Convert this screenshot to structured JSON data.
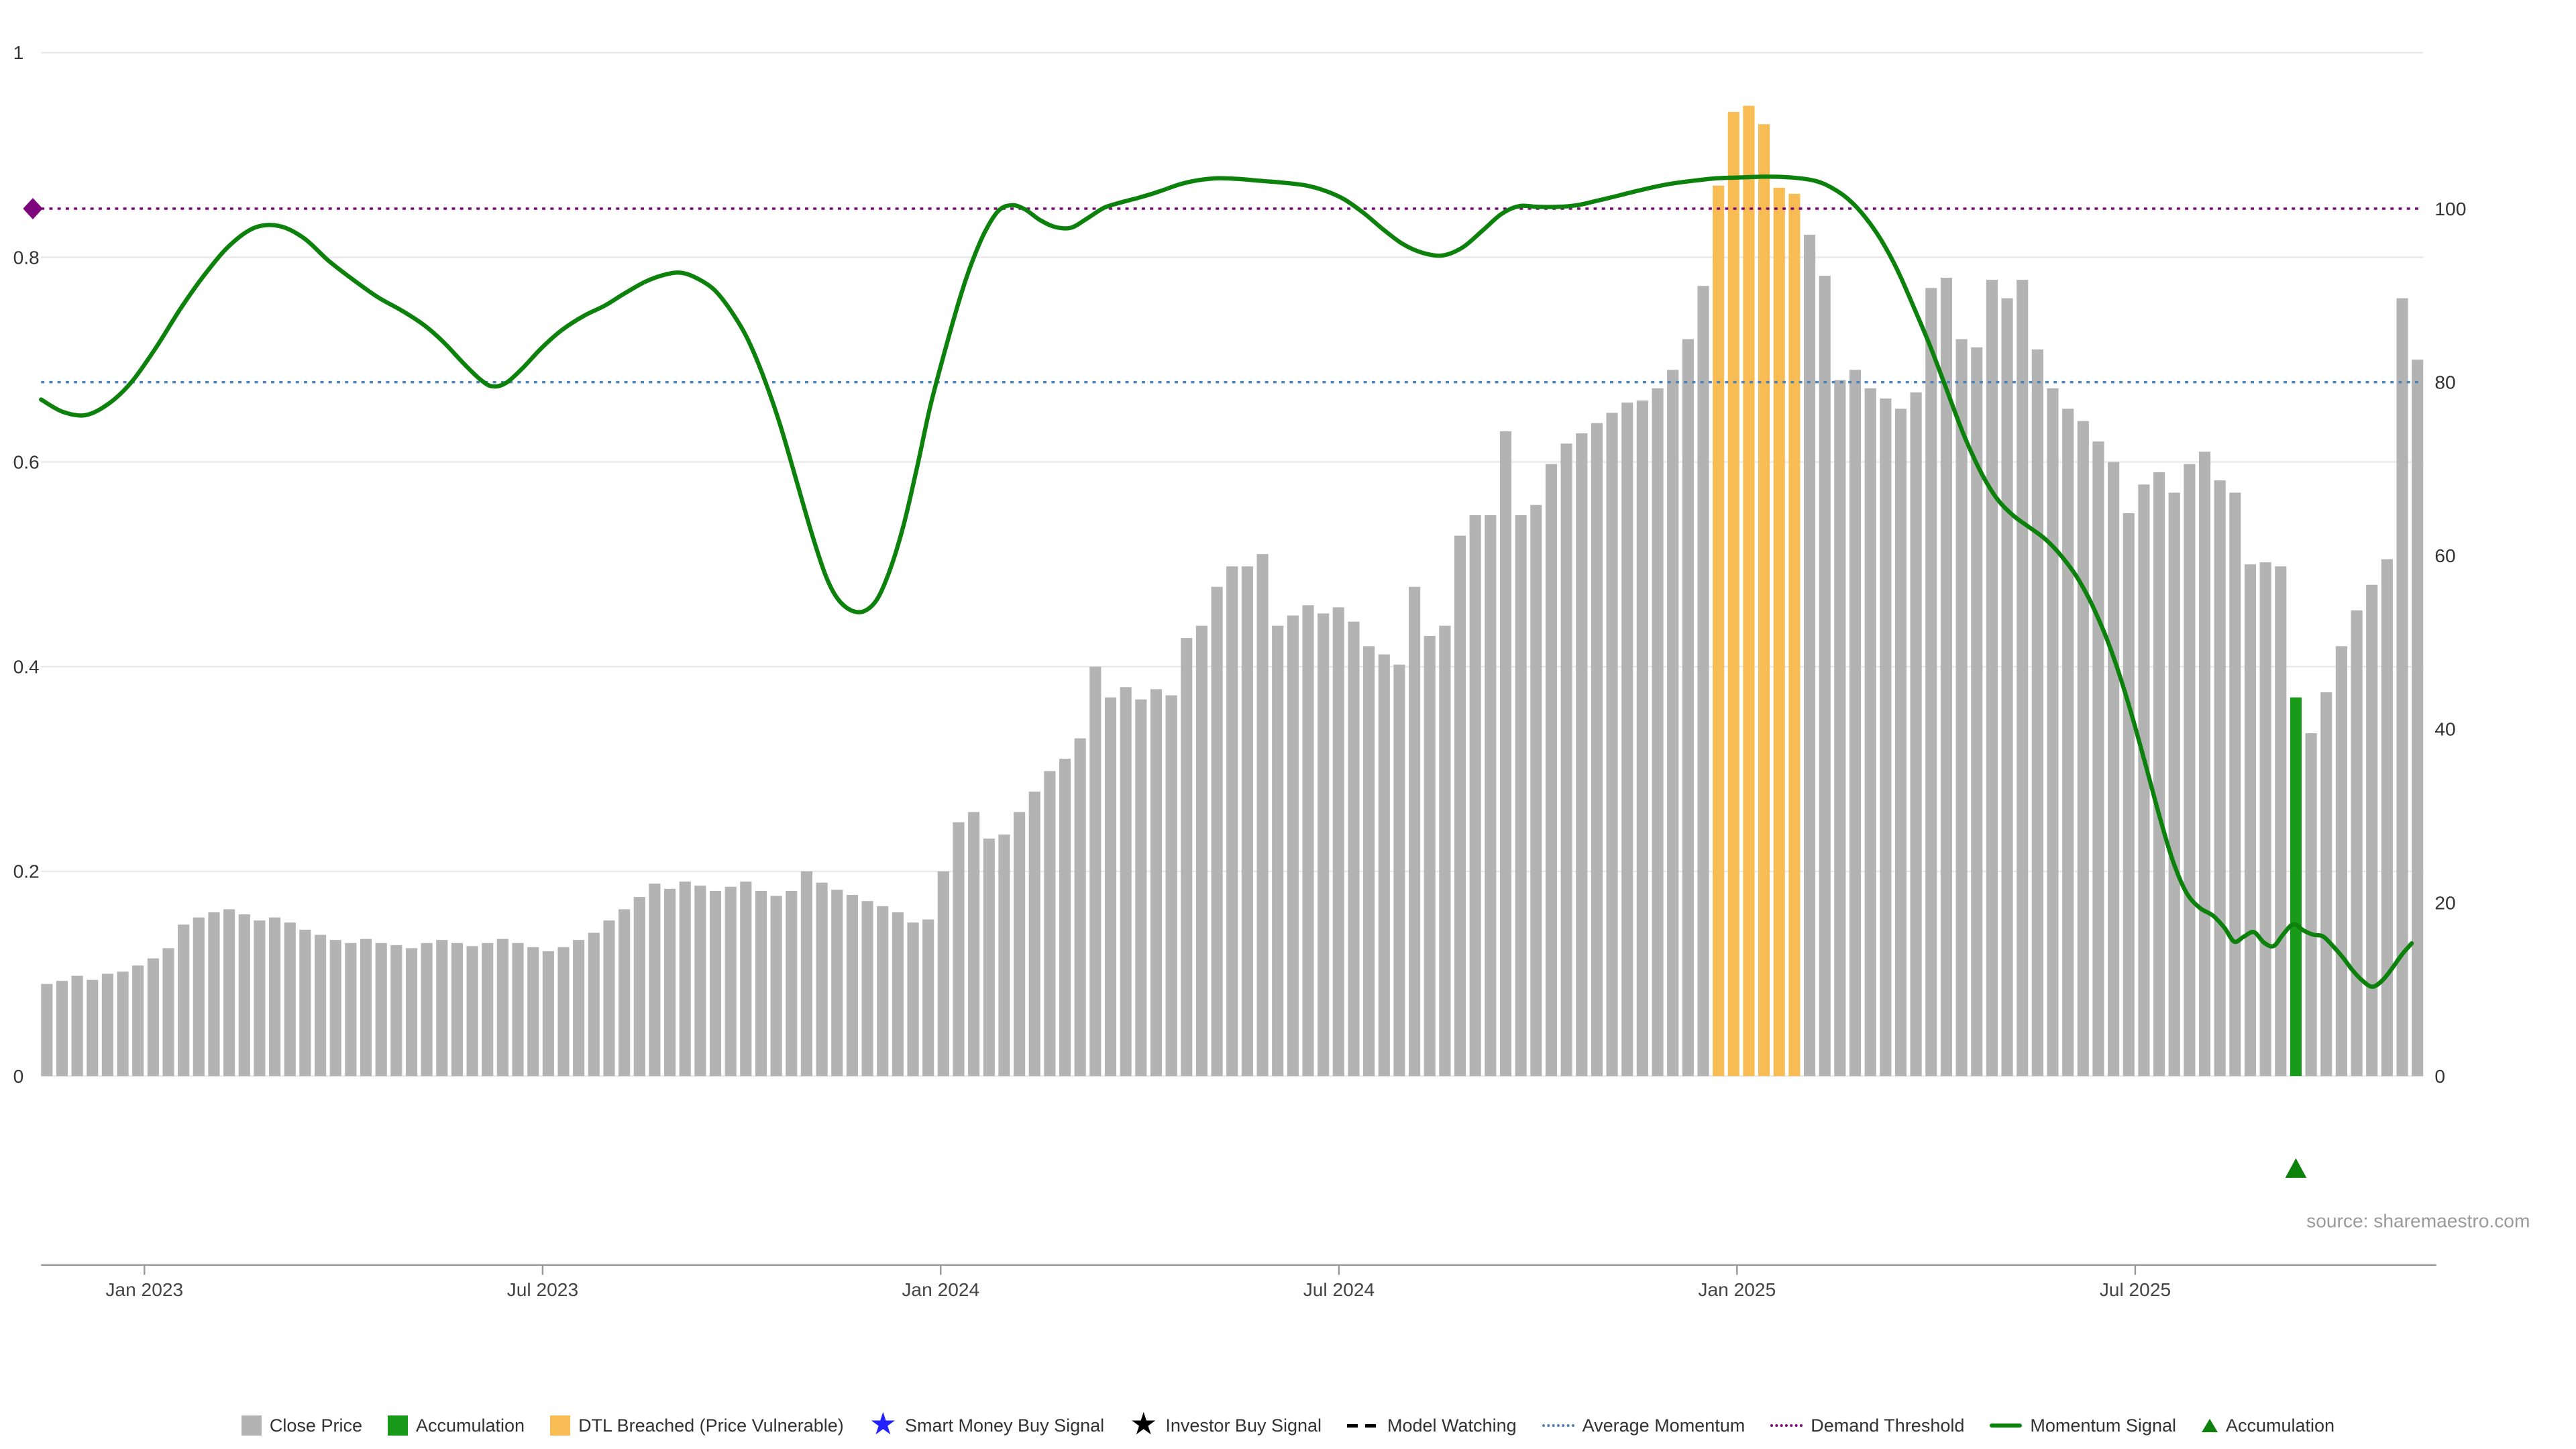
{
  "source_text": "source: sharemaestro.com",
  "chart_data": {
    "type": "bar",
    "title": "",
    "x_axis": {
      "tick_labels": [
        "Jan 2023",
        "Jul 2023",
        "Jan 2024",
        "Jul 2024",
        "Jan 2025",
        "Jul 2025"
      ],
      "tick_indices": [
        6.8,
        33.0,
        59.2,
        85.4,
        111.6,
        137.8
      ]
    },
    "left_axis": {
      "ticks": [
        "0",
        "0.2",
        "0.4",
        "0.6",
        "0.8",
        "1"
      ],
      "tick_values": [
        0,
        0.2,
        0.4,
        0.6,
        0.8,
        1
      ],
      "range": [
        0,
        1
      ]
    },
    "right_axis": {
      "ticks": [
        "0",
        "20",
        "40",
        "60",
        "80",
        "100"
      ],
      "tick_values": [
        0,
        20,
        40,
        60,
        80,
        100
      ],
      "range": [
        0,
        120
      ]
    },
    "close_price": {
      "name": "Close Price",
      "frequency": "weekly",
      "values": [
        0.09,
        0.093,
        0.098,
        0.094,
        0.1,
        0.102,
        0.108,
        0.115,
        0.125,
        0.148,
        0.155,
        0.16,
        0.163,
        0.158,
        0.152,
        0.155,
        0.15,
        0.143,
        0.138,
        0.133,
        0.13,
        0.134,
        0.13,
        0.128,
        0.125,
        0.13,
        0.133,
        0.13,
        0.127,
        0.13,
        0.134,
        0.13,
        0.126,
        0.122,
        0.126,
        0.133,
        0.14,
        0.152,
        0.163,
        0.175,
        0.188,
        0.183,
        0.19,
        0.186,
        0.181,
        0.185,
        0.19,
        0.181,
        0.176,
        0.181,
        0.2,
        0.189,
        0.182,
        0.177,
        0.171,
        0.166,
        0.16,
        0.15,
        0.153,
        0.2,
        0.248,
        0.258,
        0.232,
        0.236,
        0.258,
        0.278,
        0.298,
        0.31,
        0.33,
        0.4,
        0.37,
        0.38,
        0.368,
        0.378,
        0.372,
        0.428,
        0.44,
        0.478,
        0.498,
        0.498,
        0.51,
        0.44,
        0.45,
        0.46,
        0.452,
        0.458,
        0.444,
        0.42,
        0.412,
        0.402,
        0.478,
        0.43,
        0.44,
        0.528,
        0.548,
        0.548,
        0.63,
        0.548,
        0.558,
        0.598,
        0.618,
        0.628,
        0.638,
        0.648,
        0.658,
        0.66,
        0.672,
        0.69,
        0.72,
        0.772,
        0.87,
        0.942,
        0.948,
        0.93,
        0.868,
        0.862,
        0.822,
        0.782,
        0.68,
        0.69,
        0.672,
        0.662,
        0.652,
        0.668,
        0.77,
        0.78,
        0.72,
        0.712,
        0.778,
        0.76,
        0.778,
        0.71,
        0.672,
        0.652,
        0.64,
        0.62,
        0.6,
        0.55,
        0.578,
        0.59,
        0.57,
        0.598,
        0.61,
        0.582,
        0.57,
        0.5,
        0.502,
        0.498,
        0.37,
        0.335,
        0.375,
        0.42,
        0.455,
        0.48,
        0.505,
        0.76,
        0.7
      ]
    },
    "momentum_signal": {
      "name": "Momentum Signal",
      "points": [
        [
          25,
          78
        ],
        [
          38,
          76.6
        ],
        [
          52,
          76.2
        ],
        [
          66,
          77.5
        ],
        [
          80,
          80
        ],
        [
          95,
          84
        ],
        [
          110,
          88.5
        ],
        [
          125,
          92.5
        ],
        [
          140,
          95.8
        ],
        [
          155,
          97.8
        ],
        [
          170,
          98
        ],
        [
          185,
          96.6
        ],
        [
          200,
          94
        ],
        [
          215,
          91.8
        ],
        [
          230,
          89.8
        ],
        [
          245,
          88.2
        ],
        [
          258,
          86.6
        ],
        [
          270,
          84.6
        ],
        [
          282,
          82.2
        ],
        [
          293,
          80.2
        ],
        [
          300,
          79.5
        ],
        [
          308,
          79.9
        ],
        [
          318,
          81.6
        ],
        [
          330,
          84
        ],
        [
          342,
          86
        ],
        [
          355,
          87.6
        ],
        [
          368,
          88.8
        ],
        [
          380,
          90.2
        ],
        [
          393,
          91.6
        ],
        [
          405,
          92.4
        ],
        [
          415,
          92.6
        ],
        [
          425,
          91.9
        ],
        [
          435,
          90.6
        ],
        [
          445,
          88.2
        ],
        [
          455,
          85
        ],
        [
          465,
          80.5
        ],
        [
          475,
          75
        ],
        [
          485,
          68.5
        ],
        [
          495,
          62
        ],
        [
          503,
          57.5
        ],
        [
          510,
          55
        ],
        [
          518,
          53.7
        ],
        [
          526,
          53.6
        ],
        [
          534,
          55
        ],
        [
          542,
          58.5
        ],
        [
          550,
          63.5
        ],
        [
          558,
          70
        ],
        [
          566,
          77
        ],
        [
          575,
          83.5
        ],
        [
          584,
          89.5
        ],
        [
          592,
          94
        ],
        [
          600,
          97.5
        ],
        [
          608,
          99.8
        ],
        [
          616,
          100.4
        ],
        [
          624,
          99.9
        ],
        [
          633,
          98.7
        ],
        [
          642,
          97.9
        ],
        [
          652,
          97.8
        ],
        [
          662,
          98.9
        ],
        [
          672,
          100.1
        ],
        [
          682,
          100.7
        ],
        [
          694,
          101.3
        ],
        [
          706,
          102
        ],
        [
          718,
          102.8
        ],
        [
          730,
          103.3
        ],
        [
          742,
          103.5
        ],
        [
          755,
          103.4
        ],
        [
          768,
          103.2
        ],
        [
          781,
          103
        ],
        [
          794,
          102.7
        ],
        [
          806,
          102.1
        ],
        [
          818,
          101.1
        ],
        [
          830,
          99.5
        ],
        [
          842,
          97.6
        ],
        [
          854,
          95.9
        ],
        [
          866,
          94.9
        ],
        [
          878,
          94.6
        ],
        [
          890,
          95.5
        ],
        [
          902,
          97.4
        ],
        [
          914,
          99.4
        ],
        [
          925,
          100.3
        ],
        [
          936,
          100.2
        ],
        [
          948,
          100.2
        ],
        [
          960,
          100.4
        ],
        [
          972,
          100.9
        ],
        [
          985,
          101.5
        ],
        [
          1000,
          102.2
        ],
        [
          1015,
          102.8
        ],
        [
          1030,
          103.2
        ],
        [
          1045,
          103.5
        ],
        [
          1060,
          103.6
        ],
        [
          1075,
          103.7
        ],
        [
          1090,
          103.6
        ],
        [
          1105,
          103.2
        ],
        [
          1115,
          102.4
        ],
        [
          1125,
          101.1
        ],
        [
          1135,
          99.1
        ],
        [
          1145,
          96.4
        ],
        [
          1155,
          92.9
        ],
        [
          1165,
          88.6
        ],
        [
          1175,
          84.1
        ],
        [
          1185,
          79.1
        ],
        [
          1195,
          74.1
        ],
        [
          1205,
          69.9
        ],
        [
          1215,
          66.7
        ],
        [
          1225,
          64.7
        ],
        [
          1235,
          63.3
        ],
        [
          1245,
          61.9
        ],
        [
          1255,
          59.9
        ],
        [
          1265,
          57.3
        ],
        [
          1275,
          53.7
        ],
        [
          1285,
          49.1
        ],
        [
          1295,
          43.3
        ],
        [
          1305,
          36.6
        ],
        [
          1315,
          29.6
        ],
        [
          1323,
          24.6
        ],
        [
          1331,
          21.1
        ],
        [
          1339,
          19.4
        ],
        [
          1347,
          18.5
        ],
        [
          1354,
          17.1
        ],
        [
          1360,
          15.5
        ],
        [
          1366,
          16.1
        ],
        [
          1372,
          16.6
        ],
        [
          1378,
          15.4
        ],
        [
          1384,
          15
        ],
        [
          1390,
          16.4
        ],
        [
          1396,
          17.5
        ],
        [
          1402,
          16.8
        ],
        [
          1408,
          16.3
        ],
        [
          1414,
          16.1
        ],
        [
          1420,
          15
        ],
        [
          1426,
          13.7
        ],
        [
          1432,
          12.2
        ],
        [
          1438,
          11
        ],
        [
          1444,
          10.3
        ],
        [
          1450,
          11
        ],
        [
          1456,
          12.4
        ],
        [
          1462,
          14
        ],
        [
          1468,
          15.3
        ]
      ]
    },
    "dtl_breached_indices": [
      110,
      111,
      112,
      113,
      114,
      115
    ],
    "accumulation_bar_index": 148,
    "accumulation_marker_index": 148,
    "reference_lines": [
      {
        "name": "Demand Threshold",
        "axis": "right",
        "value": 100,
        "color": "#7d067d",
        "style": "dotted"
      },
      {
        "name": "Average Momentum",
        "axis": "right",
        "value": 80,
        "color": "#4d82b8",
        "style": "dotted"
      }
    ],
    "demand_threshold_marker": {
      "shape": "diamond",
      "value": 100,
      "color": "#7d067d"
    },
    "colors": {
      "bar": "#b3b3b3",
      "dtl": "#f8bc55",
      "accumulation": "#1a9a1a",
      "momentum": "#0c820c",
      "grid": "#e9e9e9",
      "axis": "#999999",
      "tick_text": "#444444"
    },
    "legend_position": "bottom",
    "grid": true
  },
  "legend": {
    "items": [
      {
        "label": "Close Price",
        "swatch": "square",
        "color": "#b3b3b3"
      },
      {
        "label": "Accumulation",
        "swatch": "square",
        "color": "#1a9a1a"
      },
      {
        "label": "DTL Breached (Price Vulnerable)",
        "swatch": "square",
        "color": "#f8bc55"
      },
      {
        "label": "Smart Money Buy Signal",
        "swatch": "star",
        "color": "#2222ff"
      },
      {
        "label": "Investor Buy Signal",
        "swatch": "star",
        "color": "#000000"
      },
      {
        "label": "Model Watching",
        "swatch": "dashed-line",
        "color": "#000000"
      },
      {
        "label": "Average Momentum",
        "swatch": "dotted-line",
        "color": "#4d82b8"
      },
      {
        "label": "Demand Threshold",
        "swatch": "dotted-line",
        "color": "#7d067d"
      },
      {
        "label": "Momentum Signal",
        "swatch": "solid-line",
        "color": "#0c820c"
      },
      {
        "label": "Accumulation",
        "swatch": "triangle",
        "color": "#0c820c"
      }
    ]
  }
}
